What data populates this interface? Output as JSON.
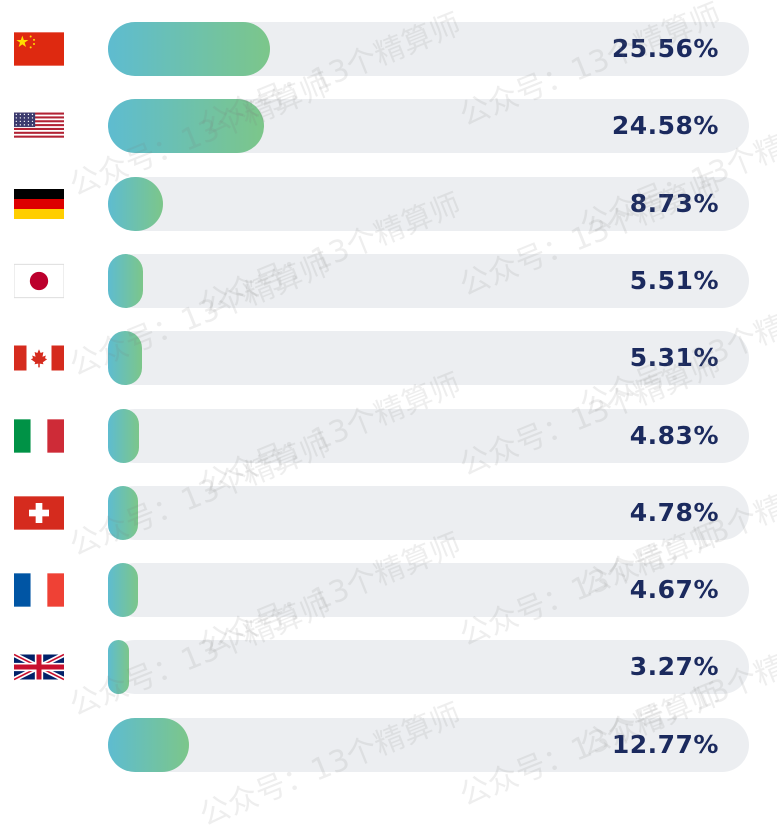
{
  "chart_data": {
    "type": "bar",
    "orientation": "horizontal",
    "categories": [
      "China",
      "United States",
      "Germany",
      "Japan",
      "Canada",
      "Italy",
      "Switzerland",
      "France",
      "United Kingdom",
      ""
    ],
    "flags": [
      "cn-flag-icon",
      "us-flag-icon",
      "de-flag-icon",
      "jp-flag-icon",
      "ca-flag-icon",
      "it-flag-icon",
      "ch-flag-icon",
      "fr-flag-icon",
      "gb-flag-icon",
      ""
    ],
    "values": [
      25.56,
      24.58,
      8.73,
      5.51,
      5.31,
      4.83,
      4.78,
      4.67,
      3.27,
      12.77
    ],
    "labels": [
      "25.56%",
      "24.58%",
      "8.73%",
      "5.51%",
      "5.31%",
      "4.83%",
      "4.78%",
      "4.67%",
      "3.27%",
      "12.77%"
    ],
    "xlim": [
      0,
      100
    ],
    "unit": "%",
    "colors": {
      "track": "#eceef1",
      "fill_start": "#5ebcd0",
      "fill_end": "#7cc68a",
      "label": "#1b2a5e"
    }
  },
  "watermark": "公众号：13个精算师"
}
